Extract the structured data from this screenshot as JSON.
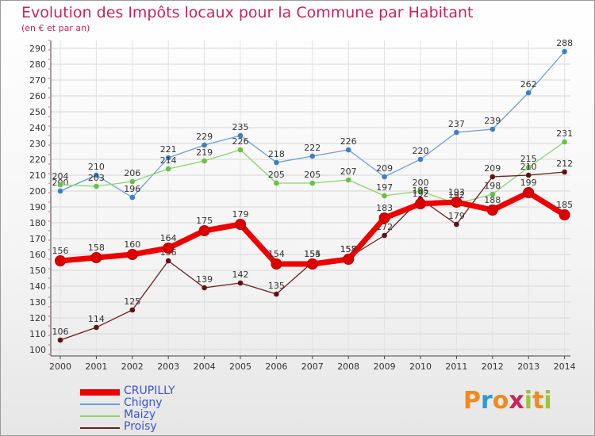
{
  "title": "Evolution des Impôts locaux pour la Commune par Habitant",
  "subtitle": "(en € et par an)",
  "logo": {
    "letters": [
      "P",
      "r",
      "o",
      "x",
      "i",
      "t",
      "i"
    ],
    "colors": [
      "#f08a1c",
      "#2a9bd6",
      "#f08a1c",
      "#c8245a",
      "#9ac43c",
      "#f08a1c",
      "#9ac43c"
    ]
  },
  "chart_data": {
    "type": "line",
    "x": [
      "2000",
      "2001",
      "2002",
      "2003",
      "2004",
      "2005",
      "2006",
      "2007",
      "2008",
      "2009",
      "2010",
      "2011",
      "2012",
      "2013",
      "2014"
    ],
    "ylim": [
      100,
      290
    ],
    "yticks": [
      100,
      110,
      120,
      130,
      140,
      150,
      160,
      170,
      180,
      190,
      200,
      210,
      220,
      230,
      240,
      250,
      260,
      270,
      280,
      290
    ],
    "grid": true,
    "legend_position": "bottom-left",
    "series": [
      {
        "name": "Chigny",
        "color": "#6a9fd4",
        "marker": "#3f7fc4",
        "width": 1.3,
        "values": [
          200,
          210,
          196,
          221,
          229,
          235,
          218,
          222,
          226,
          209,
          220,
          237,
          239,
          262,
          288
        ]
      },
      {
        "name": "Maizy",
        "color": "#88d66a",
        "marker": "#68c048",
        "width": 1.3,
        "values": [
          204,
          203,
          206,
          214,
          219,
          226,
          205,
          205,
          207,
          197,
          200,
          192,
          198,
          215,
          231
        ]
      },
      {
        "name": "Proisy",
        "color": "#6b1e1e",
        "marker": "#5a1515",
        "width": 1.3,
        "values": [
          106,
          114,
          125,
          156,
          139,
          142,
          135,
          155,
          158,
          172,
          195,
          179,
          209,
          210,
          212
        ]
      },
      {
        "name": "CRUPILLY",
        "color": "#ee0000",
        "marker": "#dd0000",
        "width": 7,
        "values": [
          156,
          158,
          160,
          164,
          175,
          179,
          154,
          154,
          157,
          183,
          192,
          193,
          188,
          199,
          185
        ]
      }
    ]
  }
}
